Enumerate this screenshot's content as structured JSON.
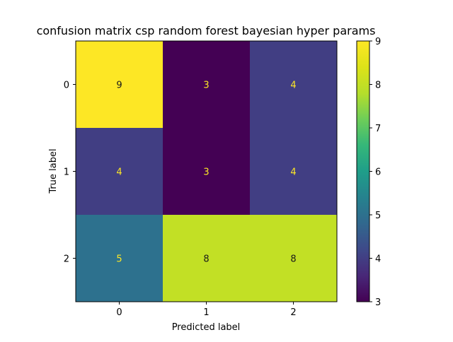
{
  "chart_data": {
    "type": "heatmap",
    "title": "confusion matrix csp random forest bayesian hyper params",
    "xlabel": "Predicted label",
    "ylabel": "True label",
    "x_categories": [
      "0",
      "1",
      "2"
    ],
    "y_categories": [
      "0",
      "1",
      "2"
    ],
    "values": [
      [
        9,
        3,
        4
      ],
      [
        4,
        3,
        4
      ],
      [
        5,
        8,
        8
      ]
    ],
    "colormap": "viridis",
    "colorbar": {
      "min": 3,
      "max": 9,
      "ticks": [
        "3",
        "4",
        "5",
        "6",
        "7",
        "8",
        "9"
      ]
    },
    "colors": {
      "dark_text": "#1a1a1a",
      "light_text": "#fde725"
    }
  }
}
